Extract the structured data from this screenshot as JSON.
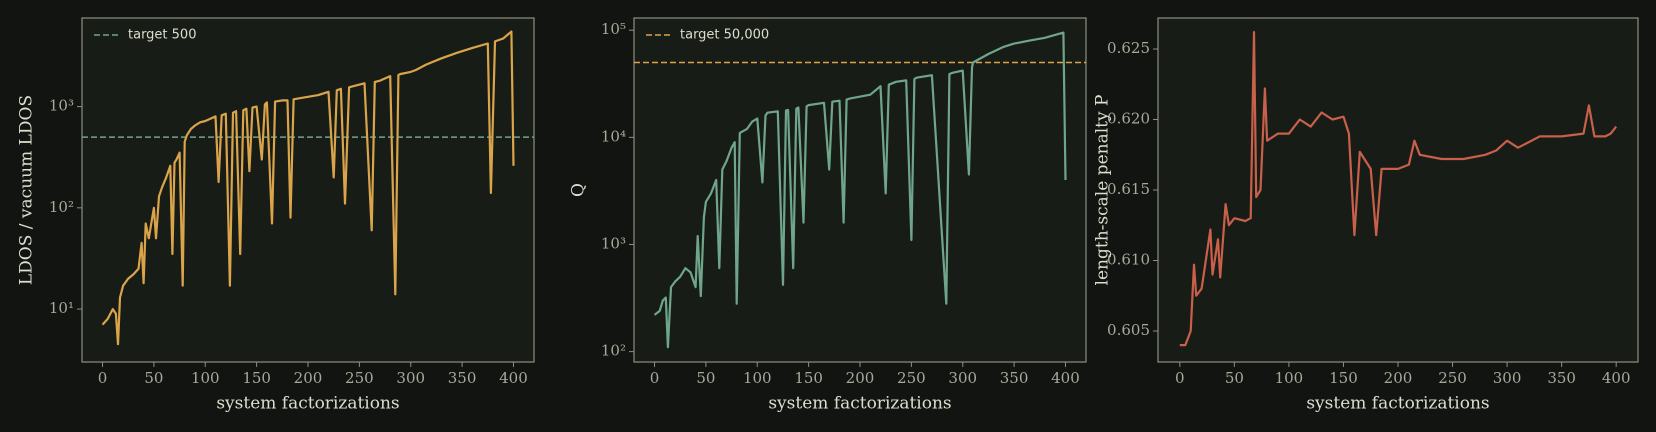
{
  "chart_data": [
    {
      "type": "line",
      "xlabel": "system factorizations",
      "ylabel": "LDOS / vacuum LDOS",
      "yscale": "log",
      "xlim": [
        -20,
        420
      ],
      "xticks": [
        0,
        50,
        100,
        150,
        200,
        250,
        300,
        350,
        400
      ],
      "ylim": [
        3,
        7500
      ],
      "yticks": [
        {
          "value": 10,
          "label": "10¹"
        },
        {
          "value": 100,
          "label": "10²"
        },
        {
          "value": 1000,
          "label": "10³"
        }
      ],
      "legend": "upper left",
      "reference_line": {
        "value": 500,
        "label": "target 500",
        "color": "#6fa58a"
      },
      "x": [
        0,
        5,
        10,
        13,
        15,
        17,
        20,
        25,
        30,
        35,
        38,
        40,
        42,
        45,
        50,
        52,
        55,
        58,
        62,
        66,
        68,
        70,
        72,
        75,
        78,
        80,
        82,
        86,
        90,
        95,
        100,
        105,
        110,
        113,
        116,
        120,
        124,
        127,
        130,
        134,
        137,
        140,
        143,
        146,
        150,
        155,
        158,
        160,
        165,
        168,
        175,
        180,
        183,
        186,
        190,
        200,
        210,
        220,
        225,
        228,
        232,
        236,
        240,
        245,
        255,
        262,
        265,
        270,
        280,
        285,
        288,
        290,
        300,
        305,
        315,
        330,
        345,
        360,
        375,
        378,
        382,
        390,
        398,
        400
      ],
      "series": [
        {
          "color": "#d9a44a",
          "values": [
            7,
            8,
            10,
            9,
            4.5,
            13,
            17,
            20,
            22,
            25,
            45,
            18,
            70,
            50,
            100,
            50,
            130,
            160,
            200,
            260,
            35,
            280,
            300,
            350,
            17,
            450,
            520,
            600,
            650,
            700,
            720,
            760,
            800,
            180,
            820,
            850,
            17,
            870,
            900,
            35,
            920,
            950,
            230,
            980,
            1000,
            300,
            1050,
            1100,
            70,
            1120,
            1150,
            1150,
            80,
            1180,
            1200,
            1250,
            1300,
            1400,
            200,
            1450,
            1500,
            110,
            1550,
            1600,
            1700,
            60,
            1750,
            1800,
            2000,
            14,
            2050,
            2100,
            2200,
            2300,
            2600,
            3000,
            3400,
            3800,
            4200,
            140,
            4400,
            4700,
            5500,
            260
          ]
        }
      ]
    },
    {
      "type": "line",
      "xlabel": "system factorizations",
      "ylabel": "Q",
      "yscale": "log",
      "xlim": [
        -20,
        420
      ],
      "xticks": [
        0,
        50,
        100,
        150,
        200,
        250,
        300,
        350,
        400
      ],
      "ylim": [
        80,
        130000
      ],
      "yticks": [
        {
          "value": 100,
          "label": "10²"
        },
        {
          "value": 1000,
          "label": "10³"
        },
        {
          "value": 10000,
          "label": "10⁴"
        },
        {
          "value": 100000,
          "label": "10⁵"
        }
      ],
      "legend": "upper left",
      "reference_line": {
        "value": 50000,
        "label": "target 50,000",
        "color": "#d9a44a"
      },
      "x": [
        0,
        5,
        8,
        11,
        13,
        16,
        20,
        25,
        30,
        35,
        40,
        42,
        45,
        48,
        50,
        55,
        60,
        63,
        66,
        70,
        75,
        78,
        80,
        83,
        90,
        95,
        100,
        105,
        108,
        110,
        120,
        125,
        128,
        130,
        135,
        138,
        140,
        145,
        148,
        150,
        165,
        170,
        173,
        180,
        184,
        187,
        190,
        210,
        220,
        225,
        228,
        235,
        245,
        250,
        253,
        255,
        270,
        284,
        287,
        290,
        300,
        306,
        309,
        310,
        325,
        340,
        350,
        365,
        380,
        398,
        400
      ],
      "series": [
        {
          "color": "#6fa58a",
          "values": [
            220,
            240,
            300,
            320,
            110,
            400,
            450,
            500,
            600,
            550,
            400,
            1200,
            330,
            1800,
            2500,
            3000,
            4000,
            600,
            5000,
            6000,
            8000,
            9000,
            280,
            11000,
            12000,
            14000,
            15000,
            3800,
            16000,
            17000,
            17500,
            420,
            17800,
            18000,
            600,
            18500,
            19000,
            1600,
            19500,
            20000,
            21000,
            5000,
            21500,
            22000,
            1600,
            22500,
            23000,
            25000,
            30000,
            3000,
            31000,
            33000,
            34000,
            1100,
            35000,
            36000,
            38000,
            280,
            39000,
            40000,
            42000,
            4500,
            45000,
            50000,
            60000,
            70000,
            75000,
            80000,
            85000,
            95000,
            4000
          ]
        }
      ]
    },
    {
      "type": "line",
      "xlabel": "system factorizations",
      "ylabel": "length-scale penalty P",
      "xlim": [
        -20,
        420
      ],
      "xticks": [
        0,
        50,
        100,
        150,
        200,
        250,
        300,
        350,
        400
      ],
      "ylim": [
        0.6028,
        0.6272
      ],
      "yticks": [
        0.605,
        {
          "value": 0.61,
          "label": "0.610"
        },
        0.615,
        {
          "value": 0.62,
          "label": "0.620"
        },
        0.625
      ],
      "x": [
        0,
        5,
        10,
        13,
        15,
        20,
        28,
        30,
        35,
        37,
        42,
        45,
        50,
        60,
        65,
        68,
        70,
        74,
        78,
        80,
        90,
        100,
        110,
        120,
        130,
        140,
        150,
        155,
        160,
        165,
        175,
        180,
        185,
        200,
        210,
        215,
        220,
        240,
        260,
        280,
        290,
        300,
        310,
        330,
        350,
        370,
        375,
        380,
        390,
        395,
        400
      ],
      "series": [
        {
          "color": "#c8604a",
          "values": [
            0.604,
            0.604,
            0.605,
            0.6097,
            0.6075,
            0.608,
            0.6122,
            0.609,
            0.6115,
            0.6088,
            0.614,
            0.6125,
            0.613,
            0.6128,
            0.613,
            0.6262,
            0.6145,
            0.615,
            0.6222,
            0.6185,
            0.619,
            0.619,
            0.62,
            0.6195,
            0.6205,
            0.62,
            0.6202,
            0.619,
            0.6118,
            0.6177,
            0.6165,
            0.6118,
            0.6165,
            0.6165,
            0.6168,
            0.6185,
            0.6175,
            0.6172,
            0.6172,
            0.6175,
            0.6178,
            0.6185,
            0.618,
            0.6188,
            0.6188,
            0.619,
            0.621,
            0.6188,
            0.6188,
            0.619,
            0.6195
          ]
        }
      ]
    }
  ]
}
